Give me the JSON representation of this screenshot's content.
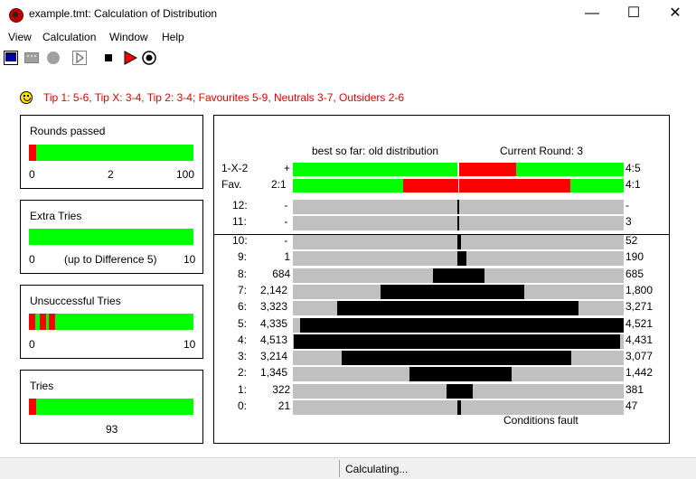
{
  "window": {
    "title": "example.tmt: Calculation of Distribution"
  },
  "menu": [
    "View",
    "Calculation",
    "Window",
    "Help"
  ],
  "toolbar_icons": [
    "view-icon",
    "grid-icon",
    "stop-circle-icon",
    "play-outline-icon",
    "stop-icon",
    "play-icon",
    "record-icon"
  ],
  "tips": "Tip 1: 5-6, Tip X: 3-4, Tip 2: 3-4; Favourites 5-9, Neutrals 3-7, Outsiders 2-6",
  "colors": {
    "green": "#00ff00",
    "red": "#ff0000",
    "gray": "#c0c0c0",
    "tip_text": "#e00000"
  },
  "rounds": {
    "title": "Rounds passed",
    "min": "0",
    "mid": "2",
    "max": "100",
    "progress": 0.02
  },
  "extra": {
    "title": "Extra Tries",
    "min": "0",
    "mid": "(up to Difference 5)",
    "max": "10"
  },
  "unsuccessful": {
    "title": "Unsuccessful Tries",
    "min": "0",
    "max": "10"
  },
  "tries": {
    "title": "Tries",
    "value": "93"
  },
  "distribution": {
    "left_header": "best so far: old distribution",
    "right_header": "Current Round: 3",
    "footer": "Conditions fault",
    "summary_rows": [
      {
        "label": "1-X-2",
        "left": "+",
        "right": "4:5"
      },
      {
        "label": "Fav.",
        "left": "2:1",
        "right": "4:1"
      }
    ],
    "upper_rows": [
      {
        "label": "12:",
        "left": "-",
        "right": "-",
        "left_value": 0,
        "right_value": 0
      },
      {
        "label": "11:",
        "left": "-",
        "right": "3",
        "left_value": 0,
        "right_value": 3
      }
    ],
    "rows": [
      {
        "label": "10:",
        "left": "-",
        "right": "52",
        "left_value": 0,
        "right_value": 52
      },
      {
        "label": "9:",
        "left": "1",
        "right": "190",
        "left_value": 1,
        "right_value": 190
      },
      {
        "label": "8:",
        "left": "684",
        "right": "685",
        "left_value": 684,
        "right_value": 685
      },
      {
        "label": "7:",
        "left": "2,142",
        "right": "1,800",
        "left_value": 2142,
        "right_value": 1800
      },
      {
        "label": "6:",
        "left": "3,323",
        "right": "3,271",
        "left_value": 3323,
        "right_value": 3271
      },
      {
        "label": "5:",
        "left": "4,335",
        "right": "4,521",
        "left_value": 4335,
        "right_value": 4521
      },
      {
        "label": "4:",
        "left": "4,513",
        "right": "4,431",
        "left_value": 4513,
        "right_value": 4431
      },
      {
        "label": "3:",
        "left": "3,214",
        "right": "3,077",
        "left_value": 3214,
        "right_value": 3077
      },
      {
        "label": "2:",
        "left": "1,345",
        "right": "1,442",
        "left_value": 1345,
        "right_value": 1442
      },
      {
        "label": "1:",
        "left": "322",
        "right": "381",
        "left_value": 322,
        "right_value": 381
      },
      {
        "label": "0:",
        "left": "21",
        "right": "47",
        "left_value": 21,
        "right_value": 47
      }
    ]
  },
  "status": "Calculating..."
}
